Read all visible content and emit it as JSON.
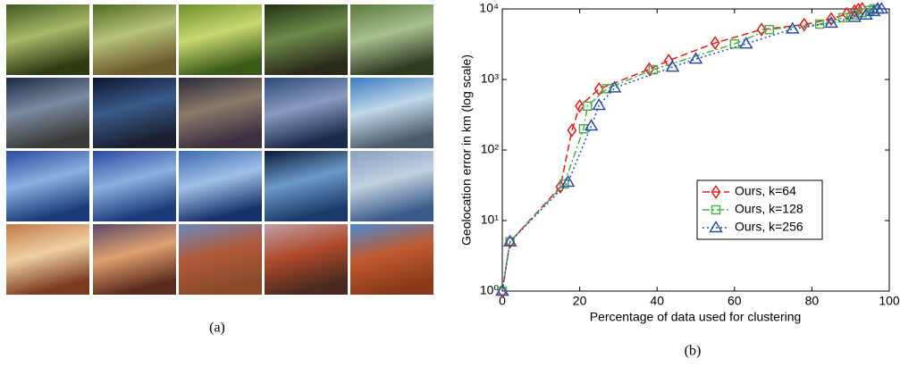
{
  "panel_a": {
    "caption": "(a)"
  },
  "chart_data": {
    "type": "line",
    "caption": "(b)",
    "xlabel": "Percentage of data used for clustering",
    "ylabel": "Geolocation error in km (log scale)",
    "xlim": [
      0,
      100
    ],
    "ylim": [
      1,
      10000
    ],
    "yscale": "log",
    "xticks": [
      0,
      20,
      40,
      60,
      80,
      100
    ],
    "yticks": [
      {
        "value": 1,
        "label": "10⁰"
      },
      {
        "value": 10,
        "label": "10¹"
      },
      {
        "value": 100,
        "label": "10²"
      },
      {
        "value": 1000,
        "label": "10³"
      },
      {
        "value": 10000,
        "label": "10⁴"
      }
    ],
    "legend": "right",
    "series": [
      {
        "name": "Ours, k=64",
        "color": "#e41a1c",
        "marker": "diamond",
        "dash": "8 4",
        "x": [
          0,
          2,
          15,
          18,
          20,
          25,
          38,
          43,
          55,
          67,
          78,
          85,
          89,
          91,
          92,
          93
        ],
        "values": [
          1,
          5,
          30,
          190,
          420,
          730,
          1400,
          1850,
          3300,
          5100,
          6000,
          7200,
          8500,
          9300,
          9800,
          10000
        ]
      },
      {
        "name": "Ours, k=128",
        "color": "#4daf4a",
        "marker": "square",
        "dash": "8 3 2 3",
        "x": [
          0,
          2,
          16,
          21,
          22,
          27,
          39,
          60,
          69,
          82,
          88,
          91,
          93,
          95,
          96
        ],
        "values": [
          1,
          5,
          33,
          200,
          420,
          740,
          1380,
          3200,
          5100,
          6100,
          7500,
          8200,
          8800,
          9500,
          10000
        ]
      },
      {
        "name": "Ours, k=256",
        "color": "#2b4fa8",
        "marker": "triangle",
        "dash": "2 3",
        "x": [
          0,
          2,
          17,
          23,
          25,
          29,
          44,
          50,
          63,
          75,
          85,
          91,
          94,
          96,
          97,
          98
        ],
        "values": [
          1,
          5,
          35,
          220,
          430,
          760,
          1500,
          1950,
          3200,
          5200,
          6300,
          7600,
          8200,
          9200,
          10000,
          10000
        ]
      }
    ]
  }
}
